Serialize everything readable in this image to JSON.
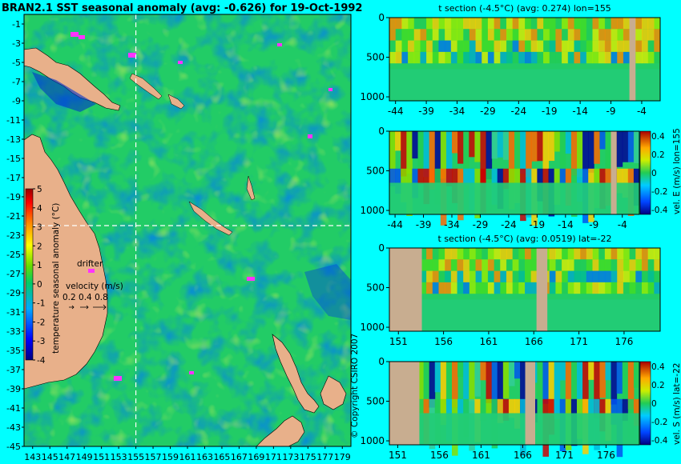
{
  "title": "BRAN2.1 SST seasonal anomaly (avg: -0.626) for 19-Oct-1992",
  "copyright": "© Copyright CSIRO 2007",
  "colors": {
    "background": "#00ffff",
    "land": "#e8b08a",
    "section_land": "#c8ad90",
    "drifter": "#ff33ff",
    "crosshair": "#ffffff"
  },
  "map": {
    "lat_ticks": [
      "-1",
      "-3",
      "-5",
      "-7",
      "-9",
      "-11",
      "-13",
      "-15",
      "-17",
      "-19",
      "-21",
      "-23",
      "-25",
      "-27",
      "-29",
      "-31",
      "-33",
      "-35",
      "-37",
      "-39",
      "-41",
      "-43",
      "-45"
    ],
    "lon_ticks": [
      "143",
      "145",
      "147",
      "149",
      "151",
      "153",
      "155",
      "157",
      "159",
      "161",
      "163",
      "165",
      "167",
      "169",
      "171",
      "173",
      "175",
      "177",
      "179"
    ],
    "lat_range": [
      -45,
      0
    ],
    "lon_range": [
      142,
      180
    ],
    "crosshair": {
      "lon": 155,
      "lat": -22
    },
    "colorbar": {
      "label": "temperature seasonal anomaly (°C)",
      "ticks": [
        "5",
        "4",
        "3",
        "2",
        "1",
        "0",
        "-1",
        "-2",
        "-3",
        "-4"
      ],
      "range": [
        -4,
        5
      ]
    },
    "drifter_label": "drifter",
    "velocity_label": "velocity (m/s)",
    "velocity_values": "0.2 0.4 0.8"
  },
  "chart_data": [
    {
      "type": "heatmap",
      "title": "t section (-4.5°C) (avg: 0.274) lon=155",
      "x_ticks": [
        "-44",
        "-39",
        "-34",
        "-29",
        "-24",
        "-19",
        "-14",
        "-9",
        "-4"
      ],
      "y_ticks": [
        "0",
        "500",
        "1000"
      ],
      "xlim": [
        -45,
        -1
      ],
      "ylim": [
        0,
        1050
      ],
      "land_x": [
        [
          -6,
          -5
        ]
      ]
    },
    {
      "type": "heatmap",
      "title": "",
      "x_ticks": [
        "-44",
        "-39",
        "-34",
        "-29",
        "-24",
        "-19",
        "-14",
        "-9",
        "-4"
      ],
      "y_ticks": [
        "0",
        "500",
        "1000"
      ],
      "xlim": [
        -45,
        -1
      ],
      "ylim": [
        0,
        1050
      ],
      "land_x": [
        [
          -6,
          -5
        ]
      ],
      "colorbar": {
        "label": "vel. E (m/s) lon=155",
        "ticks": [
          "0.4",
          "0.2",
          "0",
          "-0.2",
          "-0.4"
        ],
        "range": [
          -0.4,
          0.4
        ]
      }
    },
    {
      "type": "heatmap",
      "title": "t section (-4.5°C) (avg: 0.0519) lat=-22",
      "x_ticks": [
        "151",
        "156",
        "161",
        "166",
        "171",
        "176"
      ],
      "y_ticks": [
        "0",
        "500",
        "1000"
      ],
      "xlim": [
        150,
        180
      ],
      "ylim": [
        0,
        1050
      ],
      "land_x": [
        [
          150,
          153.6
        ],
        [
          166.3,
          167.5
        ]
      ]
    },
    {
      "type": "heatmap",
      "title": "",
      "x_ticks": [
        "151",
        "156",
        "161",
        "166",
        "171",
        "176"
      ],
      "y_ticks": [
        "0",
        "500",
        "1000"
      ],
      "xlim": [
        150,
        180
      ],
      "ylim": [
        0,
        1050
      ],
      "land_x": [
        [
          150,
          153.6
        ],
        [
          166.3,
          167.5
        ]
      ],
      "colorbar": {
        "label": "vel. S (m/s) lat=-22",
        "ticks": [
          "0.4",
          "0.2",
          "0",
          "-0.2",
          "-0.4"
        ],
        "range": [
          -0.4,
          0.4
        ]
      }
    }
  ]
}
